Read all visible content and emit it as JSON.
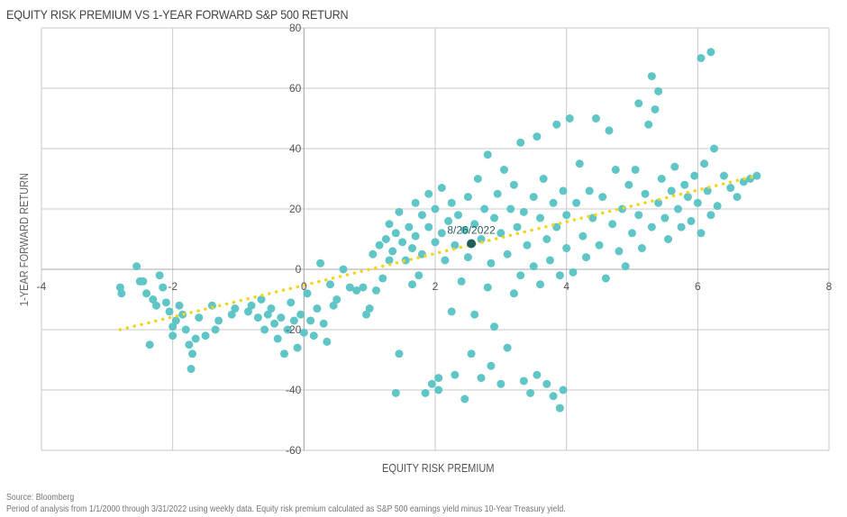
{
  "chart_data": {
    "type": "scatter",
    "title": "EQUITY RISK PREMIUM VS 1-YEAR FORWARD S&P 500 RETURN",
    "xlabel": "EQUITY RISK PREMIUM",
    "ylabel": "1-YEAR FORWARD RETURN",
    "xlim": [
      -4,
      8
    ],
    "ylim": [
      -60,
      80
    ],
    "xticks": [
      -4,
      -2,
      0,
      2,
      4,
      6,
      8
    ],
    "yticks": [
      -60,
      -40,
      -20,
      0,
      20,
      40,
      60,
      80
    ],
    "grid": true,
    "colors": {
      "points": "#5fc5c6",
      "highlight": "#1f5e5e",
      "trend": "#f2d41c",
      "grid": "#c8c8c8"
    },
    "highlight": {
      "label": "8/26/2022",
      "x": 2.55,
      "y": 8.5
    },
    "trendline": {
      "x": [
        -2.8,
        6.9
      ],
      "y": [
        -20,
        31
      ]
    },
    "points": [
      [
        -2.8,
        -6
      ],
      [
        -2.78,
        -8
      ],
      [
        -2.55,
        1
      ],
      [
        -2.5,
        -4
      ],
      [
        -2.45,
        -4
      ],
      [
        -2.4,
        -8
      ],
      [
        -2.35,
        -25
      ],
      [
        -2.3,
        -10
      ],
      [
        -2.25,
        -12
      ],
      [
        -2.2,
        -2
      ],
      [
        -2.15,
        -6
      ],
      [
        -2.1,
        -11
      ],
      [
        -2.05,
        -14
      ],
      [
        -2,
        -19
      ],
      [
        -2.0,
        -22
      ],
      [
        -1.95,
        -17
      ],
      [
        -1.9,
        -12
      ],
      [
        -1.85,
        -15
      ],
      [
        -1.8,
        -20
      ],
      [
        -1.75,
        -25
      ],
      [
        -1.72,
        -33
      ],
      [
        -1.7,
        -28
      ],
      [
        -1.65,
        -23
      ],
      [
        -1.6,
        -16
      ],
      [
        -1.5,
        -22
      ],
      [
        -1.4,
        -12
      ],
      [
        -1.35,
        -20
      ],
      [
        -1.3,
        -17
      ],
      [
        -1.1,
        -15
      ],
      [
        -1.05,
        -13
      ],
      [
        -0.85,
        -14
      ],
      [
        -0.8,
        -12
      ],
      [
        -0.7,
        -16
      ],
      [
        -0.65,
        -10
      ],
      [
        -0.6,
        -20
      ],
      [
        -0.55,
        -15
      ],
      [
        -0.5,
        -13
      ],
      [
        -0.45,
        -18
      ],
      [
        -0.4,
        -23
      ],
      [
        -0.35,
        -16
      ],
      [
        -0.3,
        -28
      ],
      [
        -0.25,
        -20
      ],
      [
        -0.2,
        -11
      ],
      [
        -0.15,
        -17
      ],
      [
        -0.1,
        -26
      ],
      [
        -0.05,
        -15
      ],
      [
        0,
        -21
      ],
      [
        0.05,
        -8
      ],
      [
        0.1,
        -17
      ],
      [
        0.15,
        -22
      ],
      [
        0.2,
        -13
      ],
      [
        0.25,
        2
      ],
      [
        0.3,
        -18
      ],
      [
        0.35,
        -24
      ],
      [
        0.4,
        -5
      ],
      [
        0.45,
        -12
      ],
      [
        0.5,
        -10
      ],
      [
        0.6,
        0
      ],
      [
        0.7,
        -6
      ],
      [
        0.8,
        -7
      ],
      [
        0.9,
        -6
      ],
      [
        0.95,
        -15
      ],
      [
        1.0,
        -13
      ],
      [
        1.05,
        5
      ],
      [
        1.1,
        -7
      ],
      [
        1.15,
        8
      ],
      [
        1.2,
        -3
      ],
      [
        1.25,
        10
      ],
      [
        1.3,
        3
      ],
      [
        1.3,
        15
      ],
      [
        1.35,
        6
      ],
      [
        1.4,
        12
      ],
      [
        1.4,
        -41
      ],
      [
        1.45,
        19
      ],
      [
        1.45,
        -28
      ],
      [
        1.5,
        9
      ],
      [
        1.55,
        3
      ],
      [
        1.6,
        14
      ],
      [
        1.65,
        -5
      ],
      [
        1.65,
        7
      ],
      [
        1.7,
        22
      ],
      [
        1.7,
        11
      ],
      [
        1.75,
        -2
      ],
      [
        1.8,
        18
      ],
      [
        1.8,
        5
      ],
      [
        1.85,
        -41
      ],
      [
        1.9,
        14
      ],
      [
        1.9,
        25
      ],
      [
        1.95,
        -38
      ],
      [
        2.0,
        9
      ],
      [
        2.0,
        20
      ],
      [
        2.05,
        -36
      ],
      [
        2.05,
        -40
      ],
      [
        2.1,
        27
      ],
      [
        2.1,
        12
      ],
      [
        2.15,
        3
      ],
      [
        2.2,
        16
      ],
      [
        2.25,
        22
      ],
      [
        2.25,
        -14
      ],
      [
        2.3,
        8
      ],
      [
        2.3,
        -35
      ],
      [
        2.35,
        18
      ],
      [
        2.4,
        -4
      ],
      [
        2.45,
        13
      ],
      [
        2.45,
        -43
      ],
      [
        2.5,
        24
      ],
      [
        2.5,
        4
      ],
      [
        2.55,
        -28
      ],
      [
        2.6,
        15
      ],
      [
        2.6,
        -15
      ],
      [
        2.65,
        30
      ],
      [
        2.7,
        10
      ],
      [
        2.7,
        -36
      ],
      [
        2.75,
        20
      ],
      [
        2.8,
        -6
      ],
      [
        2.8,
        38
      ],
      [
        2.85,
        2
      ],
      [
        2.85,
        -32
      ],
      [
        2.9,
        17
      ],
      [
        2.9,
        -19
      ],
      [
        2.95,
        25
      ],
      [
        3.0,
        12
      ],
      [
        3.0,
        -38
      ],
      [
        3.05,
        33
      ],
      [
        3.1,
        5
      ],
      [
        3.1,
        -26
      ],
      [
        3.15,
        20
      ],
      [
        3.2,
        28
      ],
      [
        3.2,
        -8
      ],
      [
        3.25,
        14
      ],
      [
        3.3,
        42
      ],
      [
        3.3,
        -2
      ],
      [
        3.35,
        19
      ],
      [
        3.35,
        -37
      ],
      [
        3.4,
        8
      ],
      [
        3.45,
        -41
      ],
      [
        3.5,
        24
      ],
      [
        3.5,
        1
      ],
      [
        3.55,
        44
      ],
      [
        3.55,
        -35
      ],
      [
        3.6,
        17
      ],
      [
        3.6,
        -5
      ],
      [
        3.65,
        30
      ],
      [
        3.7,
        10
      ],
      [
        3.7,
        -38
      ],
      [
        3.75,
        3
      ],
      [
        3.8,
        22
      ],
      [
        3.8,
        -42
      ],
      [
        3.85,
        48
      ],
      [
        3.85,
        14
      ],
      [
        3.9,
        -2
      ],
      [
        3.9,
        -46
      ],
      [
        3.95,
        26
      ],
      [
        3.95,
        -40
      ],
      [
        4.0,
        7
      ],
      [
        4.0,
        18
      ],
      [
        4.05,
        50
      ],
      [
        4.1,
        -1
      ],
      [
        4.15,
        22
      ],
      [
        4.2,
        35
      ],
      [
        4.25,
        11
      ],
      [
        4.3,
        4
      ],
      [
        4.35,
        26
      ],
      [
        4.4,
        17
      ],
      [
        4.45,
        50
      ],
      [
        4.5,
        8
      ],
      [
        4.55,
        24
      ],
      [
        4.6,
        -3
      ],
      [
        4.65,
        46
      ],
      [
        4.7,
        15
      ],
      [
        4.75,
        33
      ],
      [
        4.8,
        6
      ],
      [
        4.85,
        20
      ],
      [
        4.9,
        1
      ],
      [
        4.95,
        28
      ],
      [
        5.0,
        12
      ],
      [
        5.05,
        33
      ],
      [
        5.1,
        55
      ],
      [
        5.1,
        18
      ],
      [
        5.15,
        7
      ],
      [
        5.2,
        25
      ],
      [
        5.25,
        48
      ],
      [
        5.3,
        64
      ],
      [
        5.3,
        14
      ],
      [
        5.35,
        53
      ],
      [
        5.4,
        59
      ],
      [
        5.4,
        22
      ],
      [
        5.45,
        30
      ],
      [
        5.5,
        17
      ],
      [
        5.55,
        10
      ],
      [
        5.6,
        26
      ],
      [
        5.65,
        34
      ],
      [
        5.7,
        20
      ],
      [
        5.75,
        14
      ],
      [
        5.8,
        28
      ],
      [
        5.85,
        24
      ],
      [
        5.9,
        16
      ],
      [
        5.95,
        31
      ],
      [
        6.0,
        22
      ],
      [
        6.05,
        70
      ],
      [
        6.05,
        12
      ],
      [
        6.1,
        35
      ],
      [
        6.15,
        26
      ],
      [
        6.2,
        72
      ],
      [
        6.2,
        18
      ],
      [
        6.25,
        40
      ],
      [
        6.3,
        21
      ],
      [
        6.4,
        31
      ],
      [
        6.5,
        27
      ],
      [
        6.6,
        24
      ],
      [
        6.7,
        29
      ],
      [
        6.8,
        30
      ],
      [
        6.9,
        31
      ]
    ]
  },
  "footer": {
    "source": "Source: Bloomberg",
    "note": "Period of analysis from 1/1/2000 through 3/31/2022 using weekly data. Equity risk premium calculated as S&P 500 earnings yield minus 10-Year Treasury yield."
  }
}
